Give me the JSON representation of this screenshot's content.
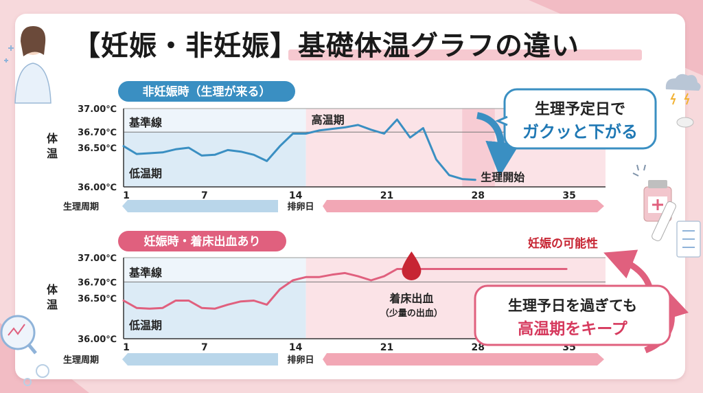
{
  "title": "【妊娠・非妊娠】基礎体温グラフの違い",
  "colors": {
    "blue": "#3a8fc2",
    "pink": "#e0607e",
    "low_zone": "#dcebf6",
    "high_zone": "#fbe3e7",
    "dark_red": "#c72533"
  },
  "chart_data": [
    {
      "type": "line",
      "title": "非妊娠時（生理が来る）",
      "ylabel": "体温",
      "xlabel": "生理周期",
      "ylim": [
        36.0,
        37.0
      ],
      "xlim": [
        1,
        38
      ],
      "y_ticks": [
        "37.00℃",
        "36.70℃",
        "36.50℃",
        "36.00℃"
      ],
      "y_tick_values": [
        37.0,
        36.7,
        36.5,
        36.0
      ],
      "x_ticks": [
        1,
        7,
        14,
        21,
        28,
        35
      ],
      "baseline": 36.7,
      "low_phase_end": 15,
      "x": [
        1,
        2,
        3,
        4,
        5,
        6,
        7,
        8,
        9,
        10,
        11,
        12,
        13,
        14,
        15,
        16,
        17,
        18,
        19,
        20,
        21,
        22,
        23,
        24,
        25,
        26,
        27,
        28
      ],
      "values": [
        36.52,
        36.42,
        36.43,
        36.44,
        36.48,
        36.5,
        36.4,
        36.41,
        36.47,
        36.45,
        36.41,
        36.33,
        36.52,
        36.68,
        36.68,
        36.72,
        36.74,
        36.76,
        36.79,
        36.73,
        36.68,
        36.86,
        36.63,
        36.75,
        36.35,
        36.15,
        36.1,
        36.09
      ],
      "series_color": "#3a8fc2",
      "ovulation_label": "排卵日",
      "zone_labels": {
        "baseline": "基準線",
        "low": "低温期",
        "high": "高温期"
      },
      "annotations": {
        "end_label": "生理開始",
        "callout_line1": "生理予定日で",
        "callout_line2": "ガクッと下がる"
      }
    },
    {
      "type": "line",
      "title": "妊娠時・着床出血あり",
      "ylabel": "体温",
      "xlabel": "生理周期",
      "ylim": [
        36.0,
        37.0
      ],
      "xlim": [
        1,
        38
      ],
      "y_ticks": [
        "37.00℃",
        "36.70℃",
        "36.50℃",
        "36.00℃"
      ],
      "y_tick_values": [
        37.0,
        36.7,
        36.5,
        36.0
      ],
      "x_ticks": [
        1,
        7,
        14,
        21,
        28,
        35
      ],
      "baseline": 36.7,
      "low_phase_end": 15,
      "x": [
        1,
        2,
        3,
        4,
        5,
        6,
        7,
        8,
        9,
        10,
        11,
        12,
        13,
        14,
        15,
        16,
        17,
        18,
        19,
        20,
        21,
        22,
        23,
        24,
        25,
        26,
        27,
        28,
        29,
        30,
        31,
        32,
        33,
        34,
        35
      ],
      "values": [
        36.47,
        36.38,
        36.37,
        36.38,
        36.47,
        36.47,
        36.38,
        36.37,
        36.42,
        36.46,
        36.47,
        36.42,
        36.61,
        36.72,
        36.76,
        36.76,
        36.79,
        36.81,
        36.77,
        36.72,
        36.77,
        36.86,
        36.86,
        36.86,
        36.86,
        36.86,
        36.86,
        36.86,
        36.86,
        36.86,
        36.86,
        36.86,
        36.86,
        36.86,
        36.86
      ],
      "series_color": "#e0607e",
      "ovulation_label": "排卵日",
      "zone_labels": {
        "baseline": "基準線",
        "low": "低温期"
      },
      "annotations": {
        "implant_label": "着床出血",
        "implant_sub": "（少量の出血）",
        "possibility": "妊娠の可能性",
        "callout_line1": "生理予日を過ぎても",
        "callout_line2": "高温期をキープ"
      }
    }
  ]
}
